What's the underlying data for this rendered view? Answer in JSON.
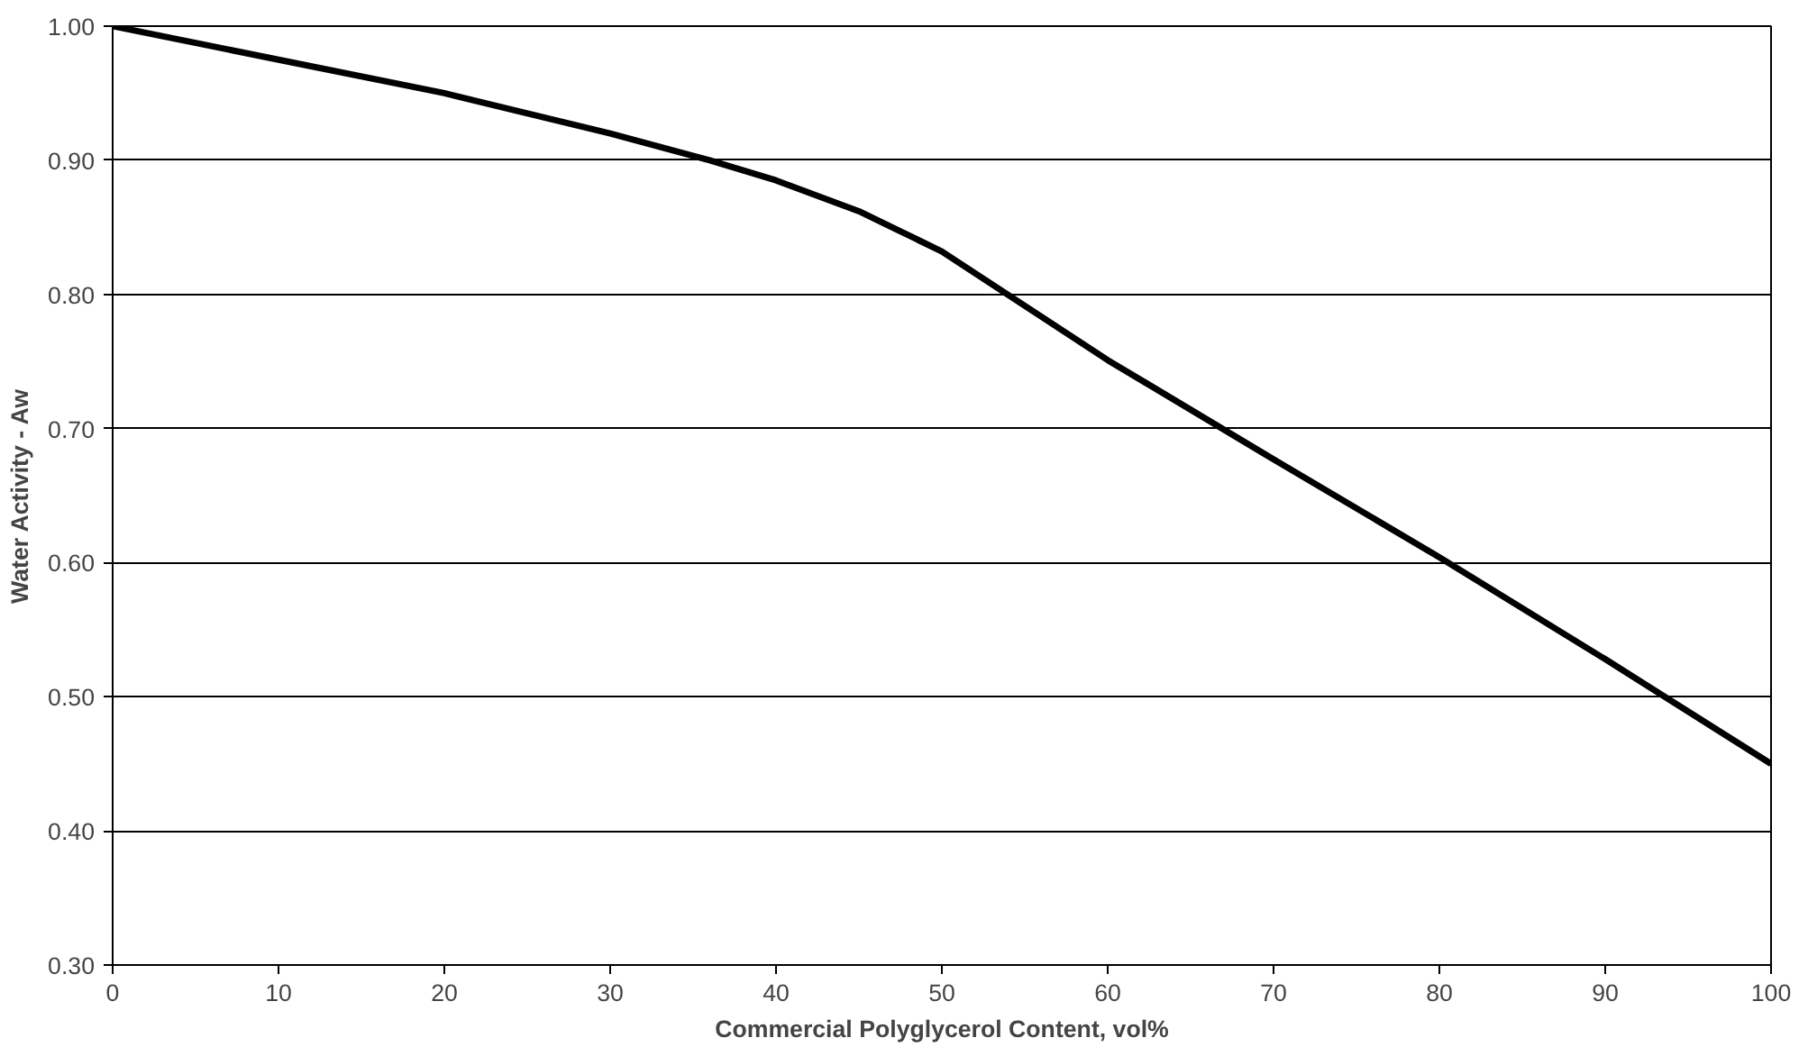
{
  "chart_data": {
    "type": "line",
    "xlabel": "Commercial Polyglycerol Content, vol%",
    "ylabel": "Water Activity - Aw",
    "x": [
      0,
      10,
      20,
      24,
      30,
      36,
      40,
      45,
      50,
      60,
      70,
      80,
      90,
      100
    ],
    "series": [
      {
        "color": "#000000",
        "values": [
          1.0,
          0.975,
          0.95,
          0.938,
          0.92,
          0.9,
          0.885,
          0.862,
          0.832,
          0.751,
          0.677,
          0.604,
          0.528,
          0.45
        ]
      }
    ],
    "xlim": [
      0,
      100
    ],
    "xticks": [
      0,
      10,
      20,
      30,
      40,
      50,
      60,
      70,
      80,
      90,
      100
    ],
    "ylim": [
      0.3,
      1.0
    ],
    "yticks": [
      {
        "value": 0.3,
        "label": "0.30"
      },
      {
        "value": 0.4,
        "label": "0.40"
      },
      {
        "value": 0.5,
        "label": "0.50"
      },
      {
        "value": 0.6,
        "label": "0.60"
      },
      {
        "value": 0.7,
        "label": "0.70"
      },
      {
        "value": 0.8,
        "label": "0.80"
      },
      {
        "value": 0.9,
        "label": "0.90"
      },
      {
        "value": 1.0,
        "label": "1.00"
      }
    ],
    "grid": "y",
    "marker": "none",
    "line_style": "solid"
  }
}
